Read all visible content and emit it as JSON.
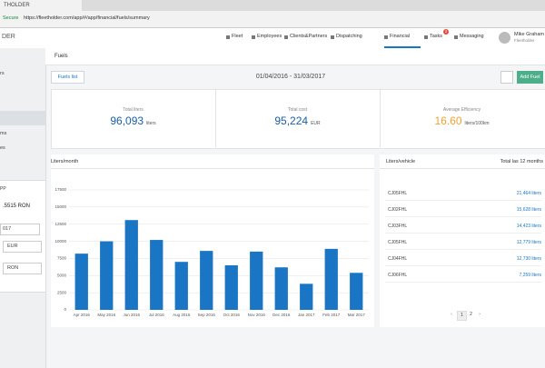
{
  "browser": {
    "tab": "THOLDER",
    "secure": "Secure",
    "url": "https://fleetholder.com/app/#/app/financial/fuels/summary"
  },
  "app": {
    "logo": "DER",
    "nav": [
      "Fleet",
      "Employees",
      "Clients&Partners",
      "Dispatching",
      "Financial",
      "Tasks",
      "Messaging"
    ],
    "tasks_badge": "2",
    "user": {
      "name": "Mike Graham",
      "company": "Fleetholder"
    }
  },
  "sidebar": {
    "items": [
      "rs",
      "ms",
      "es"
    ],
    "box": {
      "title": "PP",
      "rate": ".5515 RON",
      "date": "017",
      "from": "EUR",
      "to": "RON"
    }
  },
  "page": {
    "title": "Fuels",
    "fuels_list": "Fuels list",
    "range": "01/04/2016 - 31/03/2017",
    "add": "Add Fuel"
  },
  "stats": [
    {
      "label": "Total liters",
      "value": "96,093",
      "unit": "liters"
    },
    {
      "label": "Total cost",
      "value": "95,224",
      "unit": "EUR"
    },
    {
      "label": "Average Efficiency",
      "value": "16.60",
      "unit": "liters/100km"
    }
  ],
  "chart_data": {
    "type": "bar",
    "title": "Liters/month",
    "categories": [
      "Apr 2016",
      "May 2016",
      "Jun 2016",
      "Jul 2016",
      "Aug 2016",
      "Sep 2016",
      "Oct 2016",
      "Nov 2016",
      "Dec 2016",
      "Jan 2017",
      "Feb 2017",
      "Mar 2017"
    ],
    "values": [
      8200,
      10000,
      13100,
      10200,
      7000,
      8600,
      6500,
      8500,
      6200,
      3800,
      8900,
      5400
    ],
    "color": "#1a75c4",
    "ylim": [
      0,
      17500
    ],
    "yticks": [
      0,
      2500,
      5000,
      7500,
      10000,
      12500,
      15000,
      17500
    ],
    "grid": true
  },
  "vehicles": {
    "title": "Liters/vehicle",
    "total_label": "Total las 12 months",
    "rows": [
      [
        "CJ05FHL",
        "21,464 liters"
      ],
      [
        "CJ02FHL",
        "15,628 liters"
      ],
      [
        "CJ03FHL",
        "14,423 liters"
      ],
      [
        "CJ05FHL",
        "12,779 liters"
      ],
      [
        "CJ04FHL",
        "12,730 liters"
      ],
      [
        "CJ06FHL",
        "7,259 liters"
      ]
    ],
    "prev": "‹",
    "pages": [
      "1",
      "2"
    ],
    "next": "›"
  }
}
